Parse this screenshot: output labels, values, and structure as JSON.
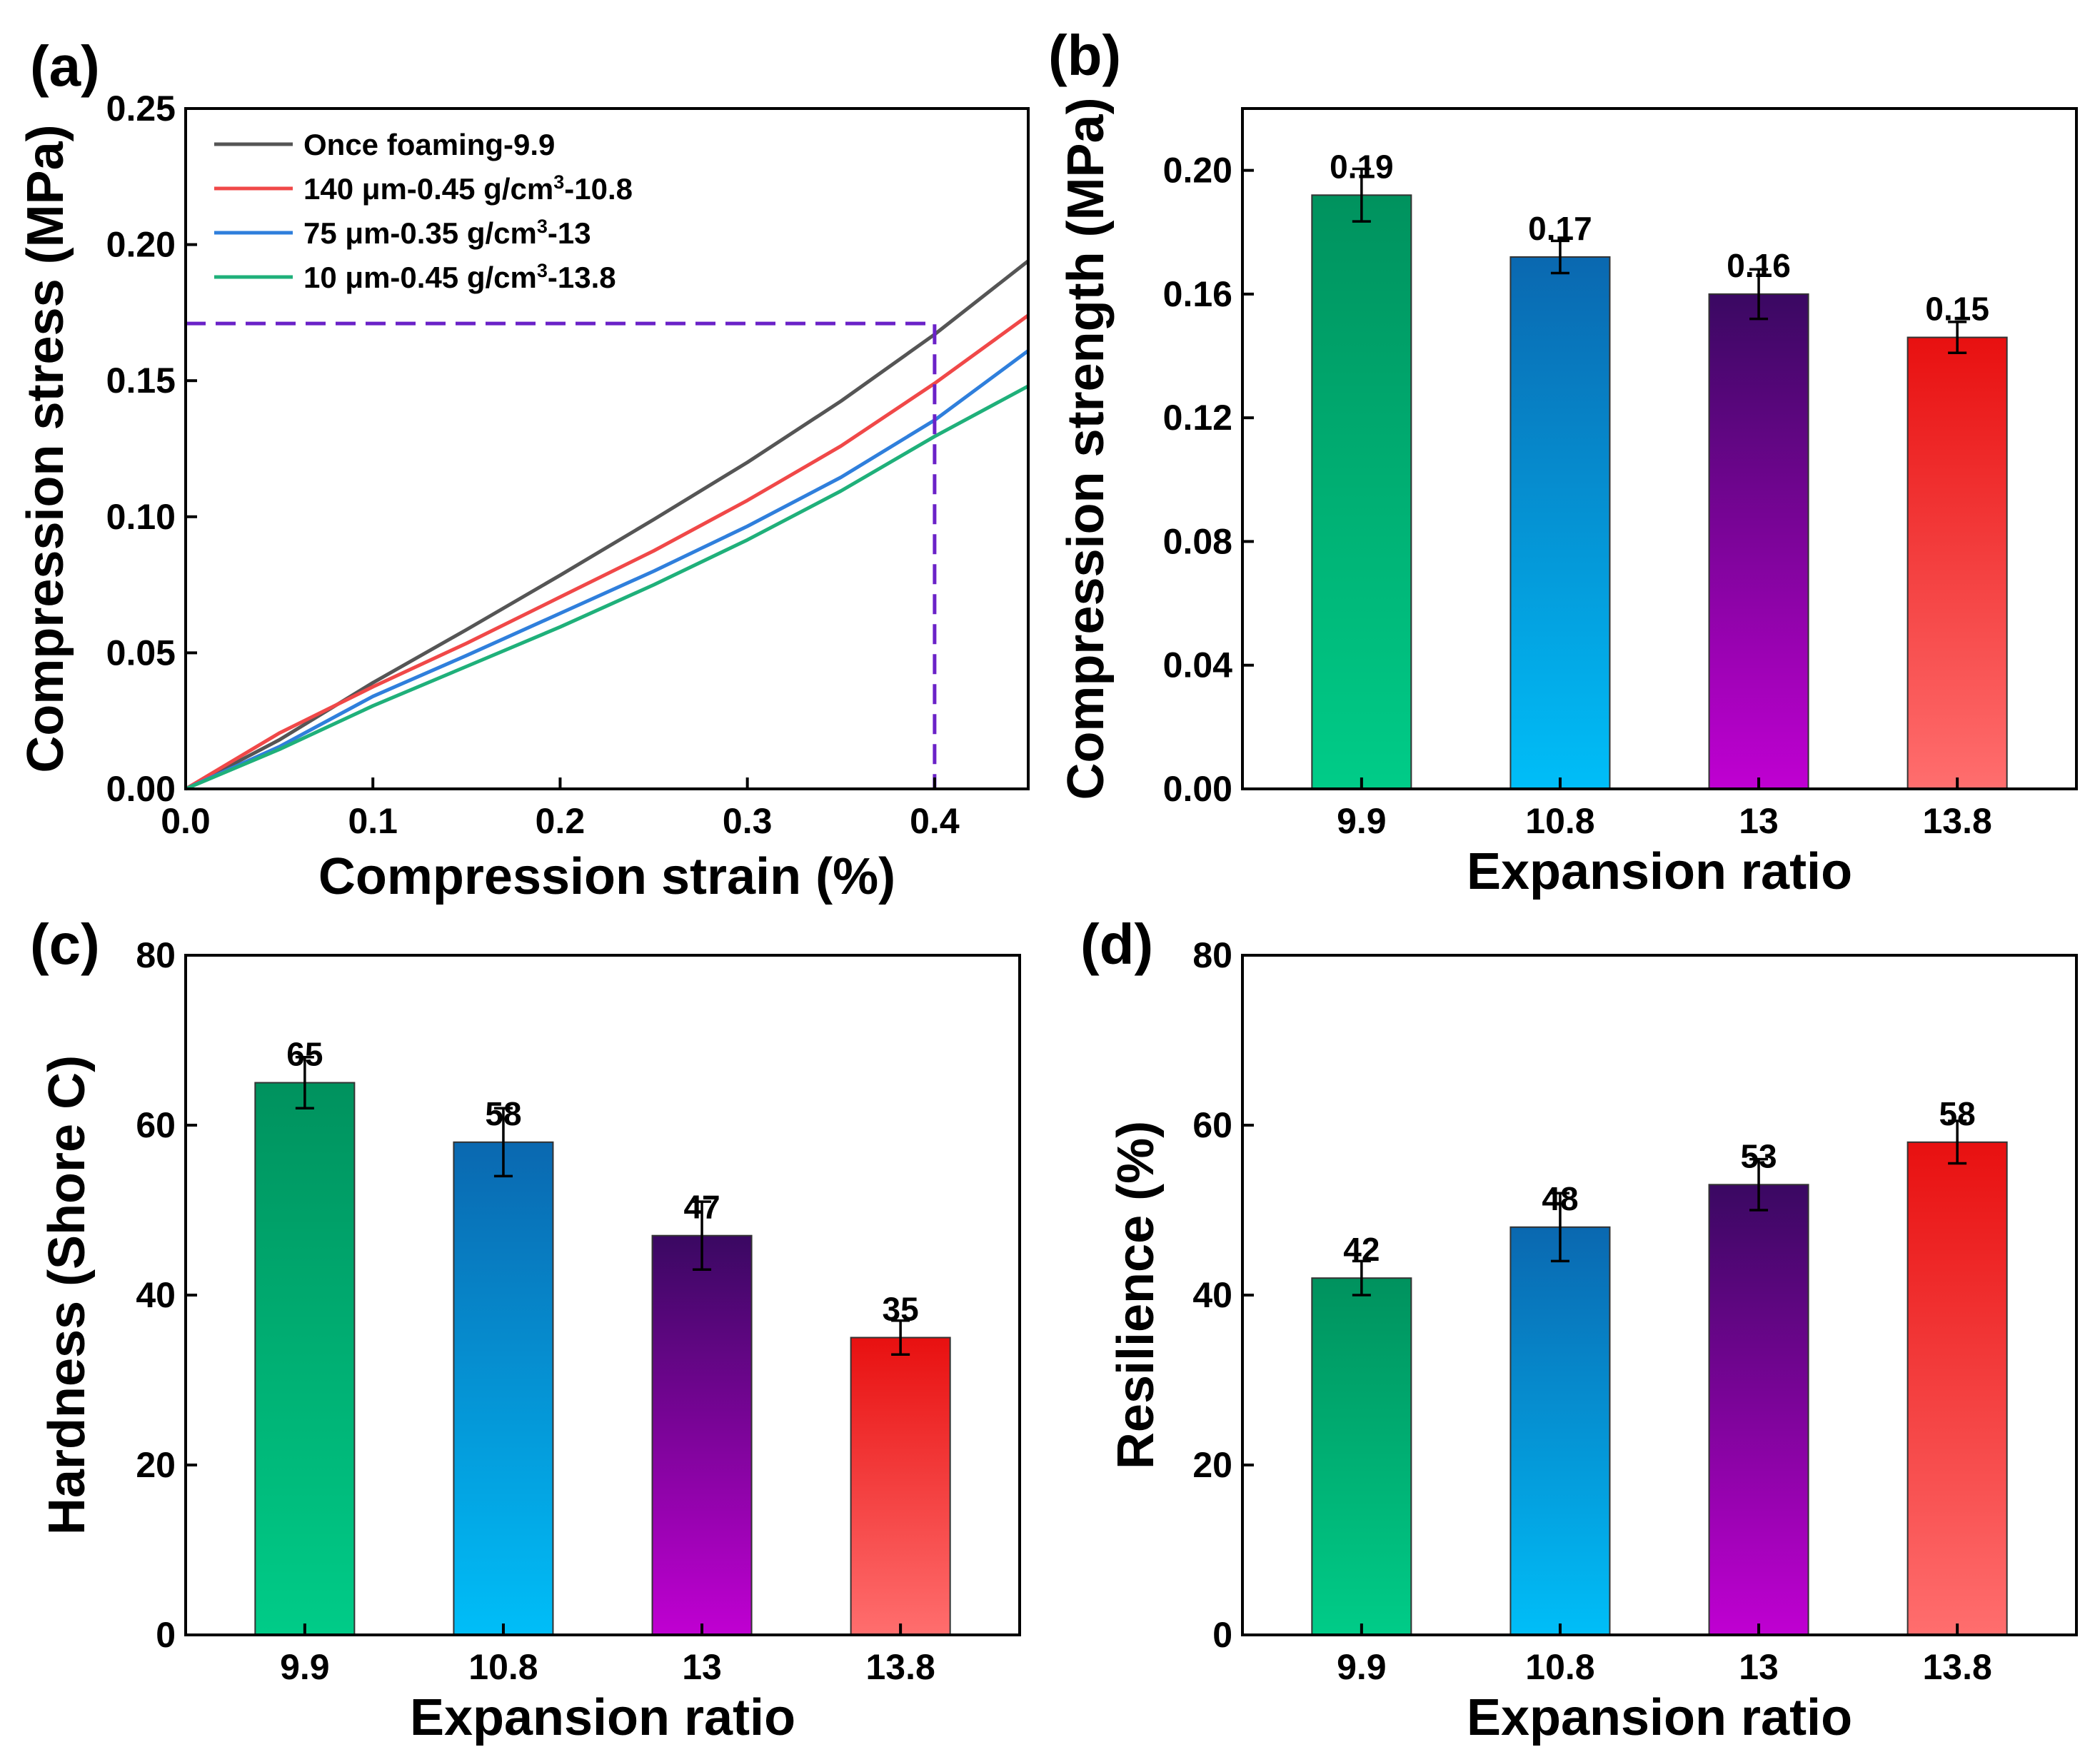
{
  "colors": {
    "once_foaming": "#555555",
    "series_140um": "#f04848",
    "series_75um": "#2f7fdc",
    "series_10um": "#1fb07a",
    "guide_line": "#6a22c8",
    "bar_9_9": [
      "#00cc88",
      "#00925e"
    ],
    "bar_10_8": [
      "#00bef8",
      "#0a68b0"
    ],
    "bar_13": [
      "#c000d2",
      "#3a0862"
    ],
    "bar_13_8": [
      "#ff6e6e",
      "#e81010"
    ]
  },
  "chart_data": [
    {
      "id": "a",
      "panel_label": "(a)",
      "type": "line",
      "xlabel": "Compression strain (%)",
      "ylabel": "Compression stress (MPa)",
      "xlim": [
        0,
        0.45
      ],
      "ylim": [
        0,
        0.25
      ],
      "xticks": [
        "0.0",
        "0.1",
        "0.2",
        "0.3",
        "0.4"
      ],
      "yticks": [
        "0.00",
        "0.05",
        "0.10",
        "0.15",
        "0.20",
        "0.25"
      ],
      "legend_position": "top-left",
      "series": [
        {
          "name": "Once foaming-9.9",
          "color_key": "once_foaming",
          "legend_parts": [
            "Once foaming-9.9"
          ],
          "x": [
            0,
            0.05,
            0.1,
            0.15,
            0.2,
            0.25,
            0.3,
            0.35,
            0.4,
            0.45
          ],
          "y": [
            0,
            0.018,
            0.039,
            0.0585,
            0.0785,
            0.099,
            0.12,
            0.1425,
            0.167,
            0.194
          ]
        },
        {
          "name": "140 μm-0.45 g/cm3-10.8",
          "color_key": "series_140um",
          "legend_parts": [
            "140 μm-0.45 g/cm",
            "3",
            "-10.8"
          ],
          "x": [
            0,
            0.05,
            0.1,
            0.15,
            0.2,
            0.25,
            0.3,
            0.35,
            0.4,
            0.45
          ],
          "y": [
            0,
            0.0205,
            0.0375,
            0.0535,
            0.0705,
            0.0875,
            0.106,
            0.126,
            0.149,
            0.174
          ]
        },
        {
          "name": "75 μm-0.35 g/cm3-13",
          "color_key": "series_75um",
          "legend_parts": [
            "75 μm-0.35 g/cm",
            "3",
            "-13"
          ],
          "x": [
            0,
            0.05,
            0.1,
            0.15,
            0.2,
            0.25,
            0.3,
            0.35,
            0.4,
            0.45
          ],
          "y": [
            0,
            0.0155,
            0.034,
            0.049,
            0.0645,
            0.08,
            0.0965,
            0.1145,
            0.1355,
            0.161
          ]
        },
        {
          "name": "10 μm-0.45 g/cm3-13.8",
          "color_key": "series_10um",
          "legend_parts": [
            "10 μm-0.45 g/cm",
            "3",
            "-13.8"
          ],
          "x": [
            0,
            0.05,
            0.1,
            0.15,
            0.2,
            0.25,
            0.3,
            0.35,
            0.4,
            0.45
          ],
          "y": [
            0,
            0.0145,
            0.0305,
            0.045,
            0.0595,
            0.075,
            0.0915,
            0.1095,
            0.1295,
            0.148
          ]
        }
      ],
      "guide": {
        "x": 0.4,
        "y": 0.171,
        "color_key": "guide_line"
      }
    },
    {
      "id": "b",
      "panel_label": "(b)",
      "type": "bar",
      "xlabel": "Expansion ratio",
      "ylabel": "Compression strength (MPa)",
      "categories": [
        "9.9",
        "10.8",
        "13",
        "13.8"
      ],
      "values": [
        0.192,
        0.172,
        0.16,
        0.146
      ],
      "value_labels": [
        "0.19",
        "0.17",
        "0.16",
        "0.15"
      ],
      "errors": [
        0.0085,
        0.0052,
        0.008,
        0.005
      ],
      "ylim": [
        0,
        0.22
      ],
      "yticks": [
        "0.00",
        "0.04",
        "0.08",
        "0.12",
        "0.16",
        "0.20"
      ],
      "ytick_values": [
        0,
        0.04,
        0.08,
        0.12,
        0.16,
        0.2
      ],
      "gradient_keys": [
        "bar_9_9",
        "bar_10_8",
        "bar_13",
        "bar_13_8"
      ]
    },
    {
      "id": "c",
      "panel_label": "(c)",
      "type": "bar",
      "xlabel": "Expansion ratio",
      "ylabel": "Hardness (Shore C)",
      "categories": [
        "9.9",
        "10.8",
        "13",
        "13.8"
      ],
      "values": [
        65,
        58,
        47,
        35
      ],
      "value_labels": [
        "65",
        "58",
        "47",
        "35"
      ],
      "errors": [
        3,
        4,
        4,
        2
      ],
      "ylim": [
        0,
        80
      ],
      "yticks": [
        "0",
        "20",
        "40",
        "60",
        "80"
      ],
      "ytick_values": [
        0,
        20,
        40,
        60,
        80
      ],
      "gradient_keys": [
        "bar_9_9",
        "bar_10_8",
        "bar_13",
        "bar_13_8"
      ]
    },
    {
      "id": "d",
      "panel_label": "(d)",
      "type": "bar",
      "xlabel": "Expansion ratio",
      "ylabel": "Resilience (%)",
      "categories": [
        "9.9",
        "10.8",
        "13",
        "13.8"
      ],
      "values": [
        42,
        48,
        53,
        58
      ],
      "value_labels": [
        "42",
        "48",
        "53",
        "58"
      ],
      "errors": [
        2,
        4,
        3,
        2.5
      ],
      "ylim": [
        0,
        80
      ],
      "yticks": [
        "0",
        "20",
        "40",
        "60",
        "80"
      ],
      "ytick_values": [
        0,
        20,
        40,
        60,
        80
      ],
      "gradient_keys": [
        "bar_9_9",
        "bar_10_8",
        "bar_13",
        "bar_13_8"
      ]
    }
  ]
}
